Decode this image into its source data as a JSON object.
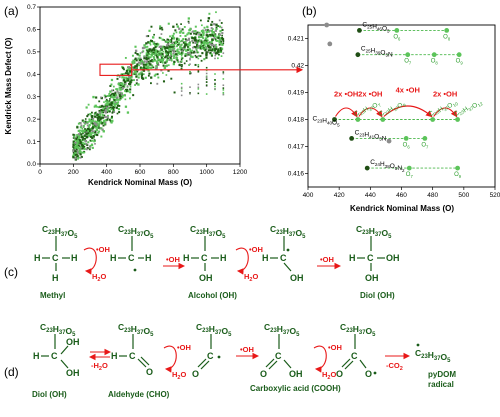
{
  "panel_labels": [
    "(a)",
    "(b)",
    "(c)",
    "(d)"
  ],
  "chart_data": [
    {
      "type": "scatter",
      "panel": "(a)",
      "xlabel": "Kendrick Nominal Mass (O)",
      "ylabel": "Kendrick Mass Defect (O)",
      "xlim": [
        0,
        1200
      ],
      "ylim": [
        0.0,
        0.7
      ],
      "xticks": [
        "0",
        "200",
        "400",
        "600",
        "800",
        "1000",
        "1200"
      ],
      "yticks": [
        "0.0",
        "0.1",
        "0.2",
        "0.3",
        "0.4",
        "0.5",
        "0.6",
        "0.7"
      ],
      "highlight_box": {
        "x": [
          360,
          550
        ],
        "y": [
          0.415,
          0.422
        ]
      },
      "colors": {
        "dark_green": "#1f5e14",
        "light_green": "#5cc45a",
        "gray": "#8c8c8c"
      }
    },
    {
      "type": "scatter",
      "panel": "(b)",
      "xlabel": "Kendrick Nominal Mass (O)",
      "xlim": [
        400,
        520
      ],
      "ylim": [
        0.4155,
        0.4215
      ],
      "xticks": [
        "400",
        "420",
        "440",
        "460",
        "480",
        "500",
        "520"
      ],
      "yticks": [
        "0.416",
        "0.417",
        "0.418",
        "0.419",
        "0.42",
        "0.421"
      ],
      "series": [
        {
          "name": "C25H46O5",
          "start": [
            433,
            0.4213
          ],
          "points": [
            {
              "label": "O6",
              "x": 457,
              "y": 0.4213
            },
            {
              "label": "O8",
              "x": 489,
              "y": 0.4213
            }
          ]
        },
        {
          "name": "C25H39O5N",
          "start": [
            432,
            0.4204
          ],
          "points": [
            {
              "label": "O7",
              "x": 464,
              "y": 0.4204
            },
            {
              "label": "O8",
              "x": 481,
              "y": 0.4204
            },
            {
              "label": "O9",
              "x": 497,
              "y": 0.4204
            }
          ]
        },
        {
          "name": "C23H40O5",
          "start": [
            417,
            0.418
          ],
          "points": [
            {
              "label": "O7",
              "x": 432,
              "y": 0.418
            },
            {
              "label": "O9",
              "x": 448,
              "y": 0.418
            },
            {
              "label": "O10",
              "x": 480,
              "y": 0.418
            },
            {
              "label": "O12",
              "x": 496,
              "y": 0.418
            }
          ]
        },
        {
          "name": "C23H41O5N",
          "start": [
            428,
            0.4173
          ],
          "points": [
            {
              "label": "O6",
              "x": 463,
              "y": 0.4173
            },
            {
              "label": "O7",
              "x": 475,
              "y": 0.4173
            }
          ]
        },
        {
          "name": "C24H38O5N2",
          "start": [
            438,
            0.4162
          ],
          "points": [
            {
              "label": "O7",
              "x": 465,
              "y": 0.4162
            },
            {
              "label": "O9",
              "x": 496,
              "y": 0.4162
            }
          ]
        }
      ],
      "gray_points": [
        {
          "x": 412,
          "y": 0.4215
        },
        {
          "x": 414,
          "y": 0.4208
        },
        {
          "x": 452,
          "y": 0.4172
        }
      ],
      "arrows": [
        {
          "label": "2x •OH",
          "from": 417,
          "to": 432
        },
        {
          "label": "2x •OH",
          "from": 432,
          "to": 448
        },
        {
          "label": "4x •OH",
          "from": 448,
          "to": 480
        },
        {
          "label": "2x •OH",
          "from": 480,
          "to": 496
        }
      ],
      "annotations": [
        {
          "text": "C23H37O7",
          "x": 432
        },
        {
          "text": "C23H37O9",
          "x": 448
        },
        {
          "text": "C23H37O10",
          "x": 480
        },
        {
          "text": "C23H37O12",
          "x": 496
        }
      ]
    }
  ],
  "panel_c": {
    "r_label": "C23H37O5",
    "names": [
      "Methyl",
      "Alcohol (OH)",
      "Diol (OH)"
    ],
    "oh_label": "•OH",
    "h2o_label": "H2O"
  },
  "panel_d": {
    "r_label": "C23H37O5",
    "names": [
      "Diol (OH)",
      "Aldehyde (CHO)",
      "Carboxylic acid (COOH)",
      "pyDOM radical"
    ],
    "oh_label": "•OH",
    "h2o_label": "H2O",
    "minus_h2o": "-H2O",
    "minus_co2": "-CO2"
  }
}
